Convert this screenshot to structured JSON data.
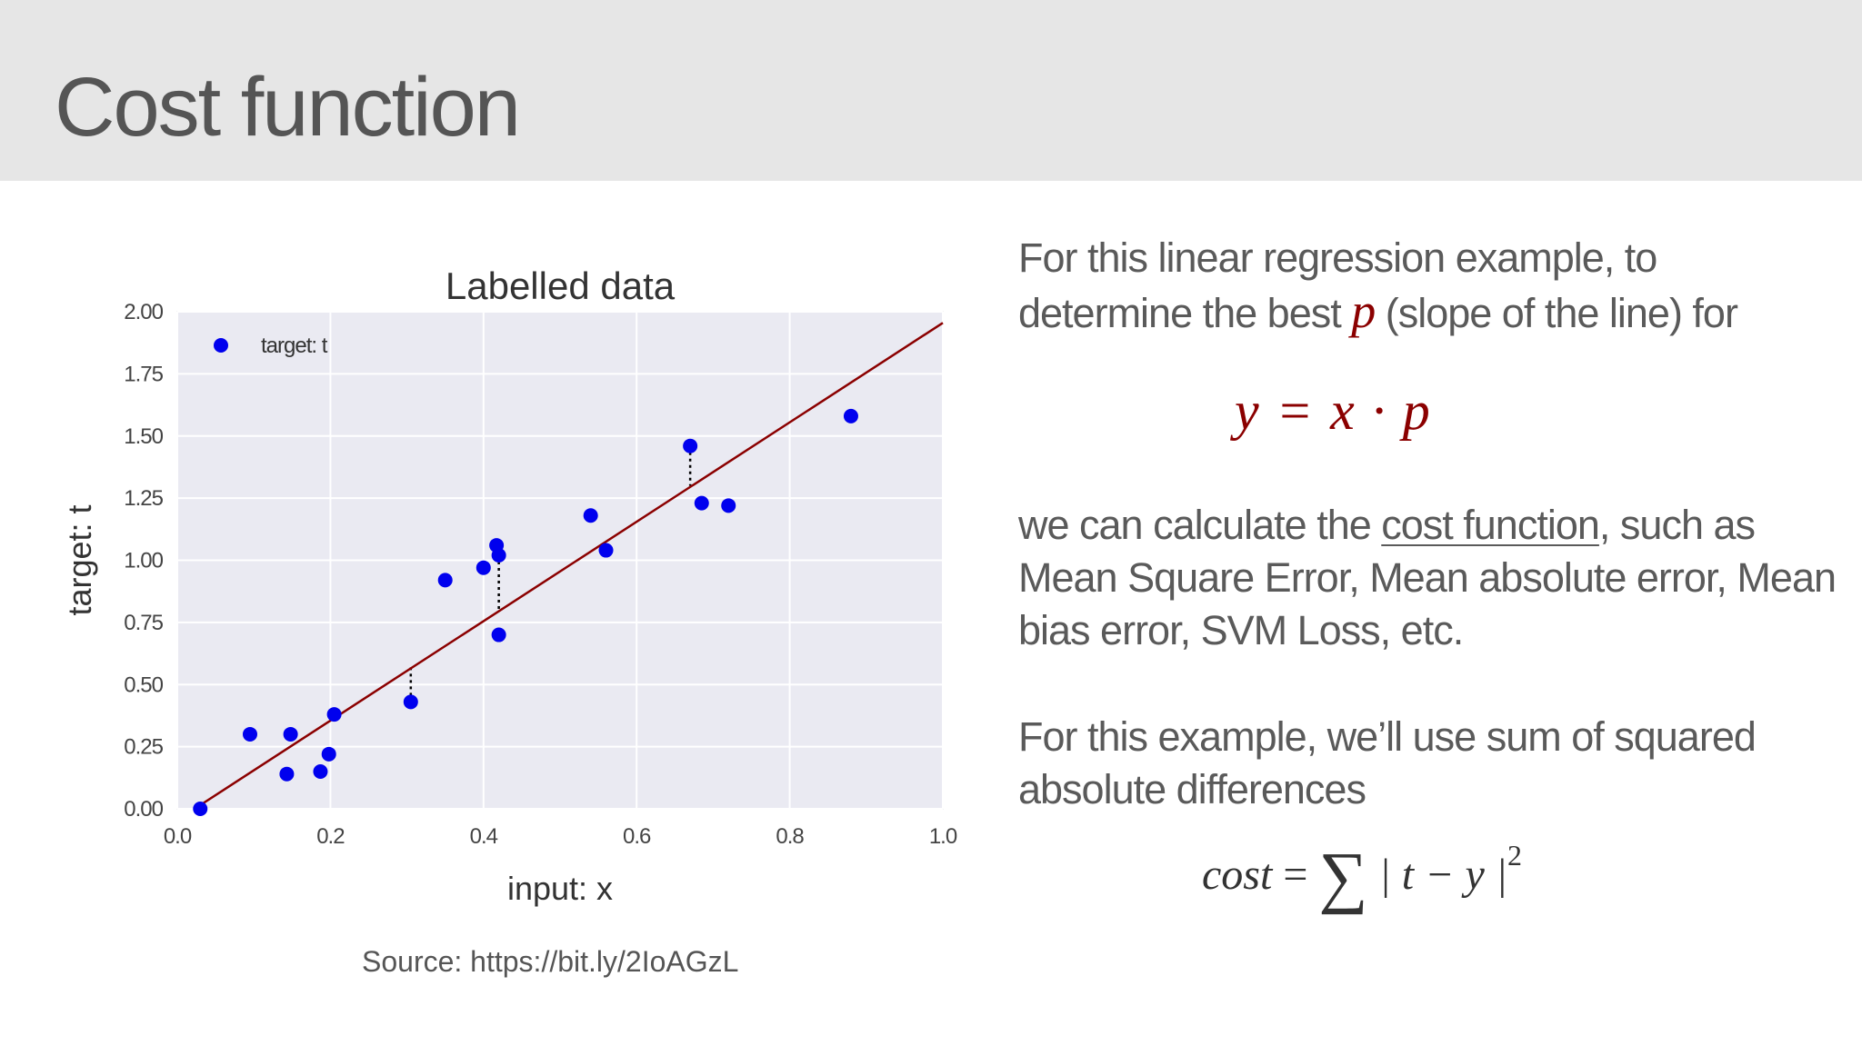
{
  "slide": {
    "title": "Cost function",
    "source": "Source: https://bit.ly/2IoAGzL"
  },
  "text": {
    "p1_a": "For this linear regression example, to determine the best ",
    "p1_var": "p",
    "p1_b": " (slope of the line) for",
    "eq1": "y = x · p",
    "p2_a": "we can calculate  the ",
    "p2_link": "cost function",
    "p2_b": ", such as Mean Square Error, Mean absolute error, Mean bias error, SVM Loss, etc.",
    "p3": "For this example, we’ll use sum of squared absolute differences",
    "eq2_lhs": "cost",
    "eq2_eq": "=",
    "eq2_sum": "∑",
    "eq2_body": "| t − y |",
    "eq2_exp": "2"
  },
  "colors": {
    "header_bg": "#e6e6e6",
    "accent": "#8b0000",
    "points": "#0000ee",
    "plot_bg": "#eaeaf2",
    "grid": "#ffffff"
  },
  "chart_data": {
    "type": "scatter",
    "title": "Labelled data",
    "xlabel": "input: x",
    "ylabel": "target: t",
    "xlim": [
      0.0,
      1.0
    ],
    "ylim": [
      0.0,
      2.0
    ],
    "xticks": [
      "0.0",
      "0.2",
      "0.4",
      "0.6",
      "0.8",
      "1.0"
    ],
    "yticks": [
      "0.00",
      "0.25",
      "0.50",
      "0.75",
      "1.00",
      "1.25",
      "1.50",
      "1.75",
      "2.00"
    ],
    "grid": true,
    "legend": {
      "label": "target: t",
      "position": "top-left"
    },
    "series": [
      {
        "name": "target: t",
        "x": [
          0.03,
          0.095,
          0.143,
          0.148,
          0.187,
          0.198,
          0.205,
          0.305,
          0.35,
          0.4,
          0.417,
          0.42,
          0.42,
          0.54,
          0.56,
          0.67,
          0.685,
          0.72,
          0.88
        ],
        "y": [
          0.0,
          0.3,
          0.14,
          0.3,
          0.15,
          0.22,
          0.38,
          0.43,
          0.92,
          0.97,
          1.06,
          1.02,
          0.7,
          1.18,
          1.04,
          1.46,
          1.23,
          1.22,
          1.58
        ]
      }
    ],
    "fit_line": {
      "slope": 2.0,
      "intercept": -0.045
    },
    "residual_lines": [
      {
        "x": 0.305,
        "y_point": 0.43,
        "y_line": 0.57
      },
      {
        "x": 0.42,
        "y_point": 1.02,
        "y_line": 0.8
      },
      {
        "x": 0.67,
        "y_point": 1.46,
        "y_line": 1.3
      }
    ]
  }
}
